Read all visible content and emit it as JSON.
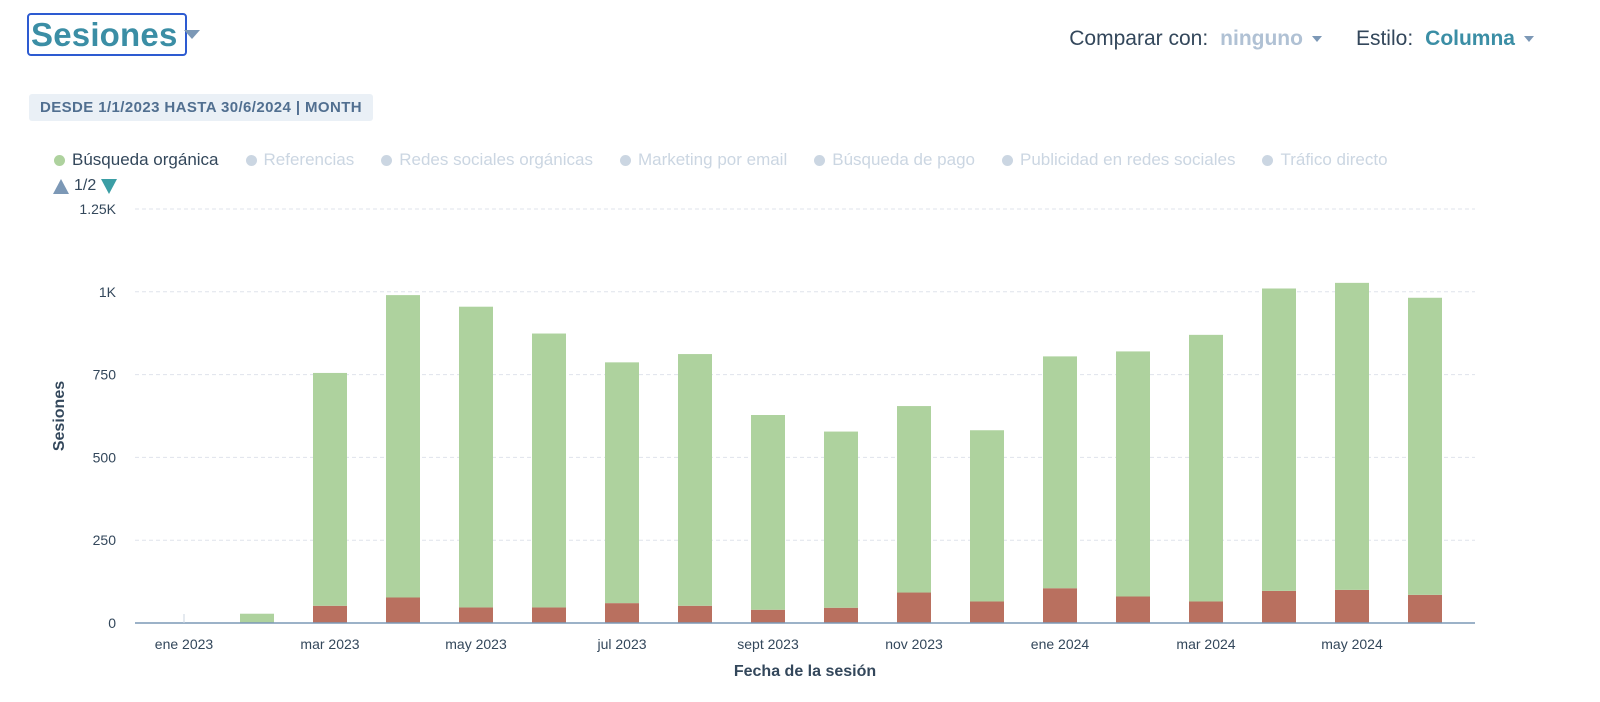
{
  "header": {
    "title": "Sesiones",
    "compare_label": "Comparar con:",
    "compare_value": "ninguno",
    "style_label": "Estilo:",
    "style_value": "Columna"
  },
  "date_range": "DESDE 1/1/2023 HASTA 30/6/2024 | MONTH",
  "pager": {
    "text": "1/2"
  },
  "colors": {
    "organic": "#aed29e",
    "red_segment": "#b9705f",
    "inactive_dot": "#cbd6e2",
    "axis": "#33475b",
    "grid": "#dfe3eb"
  },
  "legend": [
    {
      "label": "Búsqueda orgánica",
      "color": "#aed29e",
      "active": true
    },
    {
      "label": "Referencias",
      "color": "#cbd6e2",
      "active": false
    },
    {
      "label": "Redes sociales orgánicas",
      "color": "#cbd6e2",
      "active": false
    },
    {
      "label": "Marketing por email",
      "color": "#cbd6e2",
      "active": false
    },
    {
      "label": "Búsqueda de pago",
      "color": "#cbd6e2",
      "active": false
    },
    {
      "label": "Publicidad en redes sociales",
      "color": "#cbd6e2",
      "active": false
    },
    {
      "label": "Tráfico directo",
      "color": "#cbd6e2",
      "active": false
    }
  ],
  "chart_data": {
    "type": "bar",
    "stacked": true,
    "categories": [
      "ene 2023",
      "feb 2023",
      "mar 2023",
      "abr 2023",
      "may 2023",
      "jun 2023",
      "jul 2023",
      "ago 2023",
      "sept 2023",
      "oct 2023",
      "nov 2023",
      "dic 2023",
      "ene 2024",
      "feb 2024",
      "mar 2024",
      "abr 2024",
      "may 2024",
      "jun 2024"
    ],
    "x_tick_labels": [
      "ene 2023",
      "mar 2023",
      "may 2023",
      "jul 2023",
      "sept 2023",
      "nov 2023",
      "ene 2024",
      "mar 2024",
      "may 2024"
    ],
    "series": [
      {
        "color": "#b9705f",
        "values": [
          0,
          0,
          52,
          77,
          47,
          47,
          60,
          52,
          40,
          46,
          92,
          65,
          105,
          80,
          65,
          97,
          100,
          85
        ]
      },
      {
        "name": "Búsqueda orgánica",
        "color": "#aed29e",
        "values": [
          0,
          28,
          703,
          913,
          908,
          827,
          727,
          760,
          588,
          532,
          563,
          517,
          700,
          740,
          805,
          913,
          927,
          897
        ]
      }
    ],
    "y_ticks": [
      0,
      250,
      500,
      750,
      1000,
      1250
    ],
    "y_tick_labels": [
      "0",
      "250",
      "500",
      "750",
      "1K",
      "1.25K"
    ],
    "ylim": [
      0,
      1250
    ],
    "xlabel": "Fecha de la sesión",
    "ylabel": "Sesiones",
    "grid": true
  }
}
